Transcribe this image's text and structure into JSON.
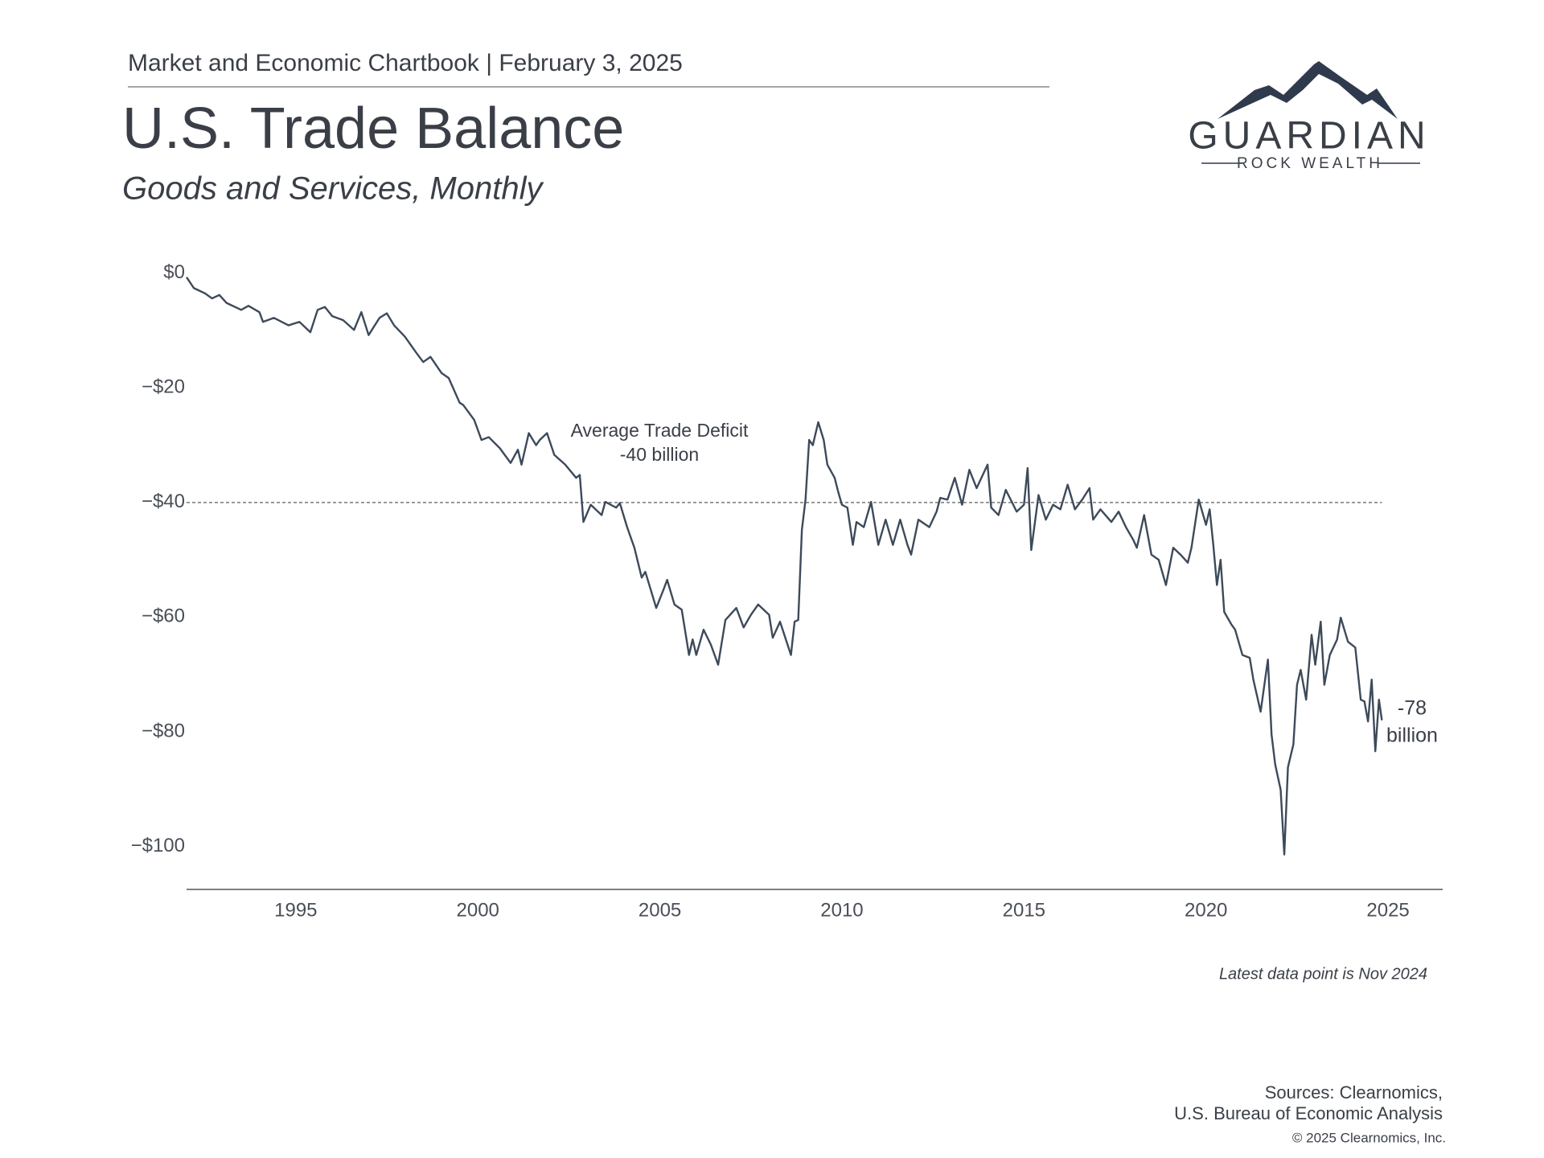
{
  "header": {
    "kicker": "Market and Economic Chartbook | February 3, 2025",
    "title": "U.S. Trade Balance",
    "subtitle": "Goods and Services, Monthly"
  },
  "logo": {
    "name": "GUARDIAN",
    "tagline": "ROCK WEALTH"
  },
  "chart_data": {
    "type": "line",
    "color": "#3d4a5a",
    "x": [
      1992.0,
      1992.2,
      1992.5,
      1992.7,
      1992.9,
      1993.1,
      1993.5,
      1993.7,
      1994.0,
      1994.1,
      1994.4,
      1994.8,
      1995.1,
      1995.4,
      1995.6,
      1995.8,
      1996.0,
      1996.3,
      1996.6,
      1996.8,
      1997.0,
      1997.3,
      1997.5,
      1997.7,
      1998.0,
      1998.3,
      1998.5,
      1998.7,
      1999.0,
      1999.2,
      1999.5,
      1999.6,
      1999.9,
      2000.1,
      2000.3,
      2000.6,
      2000.9,
      2001.1,
      2001.2,
      2001.4,
      2001.6,
      2001.7,
      2001.9,
      2002.1,
      2002.4,
      2002.7,
      2002.8,
      2002.9,
      2003.1,
      2003.4,
      2003.5,
      2003.8,
      2003.9,
      2004.1,
      2004.3,
      2004.5,
      2004.6,
      2004.9,
      2005.1,
      2005.2,
      2005.4,
      2005.6,
      2005.8,
      2005.9,
      2006.0,
      2006.2,
      2006.4,
      2006.6,
      2006.8,
      2007.1,
      2007.3,
      2007.5,
      2007.7,
      2008.0,
      2008.1,
      2008.3,
      2008.6,
      2008.7,
      2008.8,
      2008.9,
      2009.0,
      2009.1,
      2009.2,
      2009.35,
      2009.5,
      2009.6,
      2009.8,
      2009.9,
      2010.0,
      2010.15,
      2010.3,
      2010.4,
      2010.6,
      2010.8,
      2011.0,
      2011.2,
      2011.4,
      2011.6,
      2011.8,
      2011.9,
      2012.1,
      2012.4,
      2012.6,
      2012.7,
      2012.9,
      2013.1,
      2013.3,
      2013.5,
      2013.7,
      2014.0,
      2014.1,
      2014.3,
      2014.5,
      2014.8,
      2015.0,
      2015.1,
      2015.2,
      2015.4,
      2015.6,
      2015.8,
      2016.0,
      2016.2,
      2016.4,
      2016.6,
      2016.8,
      2016.9,
      2017.1,
      2017.4,
      2017.6,
      2017.8,
      2018.0,
      2018.1,
      2018.3,
      2018.5,
      2018.7,
      2018.9,
      2019.1,
      2019.3,
      2019.5,
      2019.6,
      2019.8,
      2020.0,
      2020.1,
      2020.2,
      2020.3,
      2020.4,
      2020.5,
      2020.7,
      2020.8,
      2021.0,
      2021.2,
      2021.3,
      2021.5,
      2021.7,
      2021.8,
      2021.9,
      2022.05,
      2022.15,
      2022.25,
      2022.4,
      2022.5,
      2022.6,
      2022.75,
      2022.9,
      2023.0,
      2023.15,
      2023.25,
      2023.4,
      2023.6,
      2023.7,
      2023.9,
      2024.1,
      2024.25,
      2024.35,
      2024.45,
      2024.55,
      2024.65,
      2024.75,
      2024.83
    ],
    "values": [
      -0.7,
      -2.6,
      -3.5,
      -4.4,
      -3.8,
      -5.2,
      -6.4,
      -5.7,
      -6.8,
      -8.5,
      -7.8,
      -9.1,
      -8.5,
      -10.3,
      -6.4,
      -5.9,
      -7.5,
      -8.2,
      -9.9,
      -6.8,
      -10.8,
      -7.8,
      -7.0,
      -9.1,
      -11.1,
      -13.8,
      -15.5,
      -14.6,
      -17.4,
      -18.3,
      -22.6,
      -23.0,
      -25.6,
      -29.1,
      -28.6,
      -30.5,
      -33.1,
      -30.8,
      -33.4,
      -27.9,
      -30.0,
      -29.1,
      -27.9,
      -31.7,
      -33.4,
      -35.7,
      -35.2,
      -43.4,
      -40.4,
      -42.2,
      -39.9,
      -40.9,
      -40.1,
      -44.3,
      -47.9,
      -53.1,
      -52.1,
      -58.4,
      -55.2,
      -53.5,
      -57.8,
      -58.7,
      -66.6,
      -63.9,
      -66.6,
      -62.2,
      -64.8,
      -68.3,
      -60.5,
      -58.4,
      -61.8,
      -59.6,
      -57.8,
      -59.6,
      -63.6,
      -60.8,
      -66.6,
      -60.8,
      -60.5,
      -44.8,
      -39.5,
      -29.1,
      -30.0,
      -26.0,
      -29.1,
      -33.4,
      -35.7,
      -38.2,
      -40.4,
      -40.9,
      -47.4,
      -43.4,
      -44.3,
      -39.9,
      -47.4,
      -43.0,
      -47.4,
      -43.0,
      -47.4,
      -49.1,
      -43.0,
      -44.3,
      -41.6,
      -39.2,
      -39.5,
      -35.7,
      -40.4,
      -34.3,
      -37.5,
      -33.4,
      -40.9,
      -42.2,
      -37.8,
      -41.6,
      -40.4,
      -34.0,
      -48.3,
      -38.7,
      -43.0,
      -40.4,
      -41.2,
      -36.9,
      -41.2,
      -39.5,
      -37.5,
      -43.0,
      -41.2,
      -43.4,
      -41.6,
      -44.3,
      -46.5,
      -47.9,
      -42.2,
      -49.1,
      -50.0,
      -54.4,
      -47.9,
      -49.1,
      -50.5,
      -47.9,
      -39.5,
      -43.9,
      -41.2,
      -47.4,
      -54.4,
      -50.0,
      -59.1,
      -61.3,
      -62.2,
      -66.6,
      -67.1,
      -70.9,
      -76.5,
      -67.4,
      -80.5,
      -85.7,
      -90.1,
      -101.4,
      -86.2,
      -82.2,
      -71.8,
      -69.2,
      -74.4,
      -63.1,
      -68.3,
      -60.8,
      -71.8,
      -66.6,
      -63.9,
      -60.1,
      -64.3,
      -65.3,
      -74.4,
      -74.7,
      -78.2,
      -70.9,
      -83.4,
      -74.4,
      -78.0
    ],
    "xlim": [
      1992.0,
      2026.5
    ],
    "xticks": [
      1995,
      2000,
      2005,
      2010,
      2015,
      2020,
      2025
    ],
    "ylim": [
      -107.5,
      1.5
    ],
    "yticks": [
      {
        "value": 0,
        "label": "$0"
      },
      {
        "value": -20,
        "label": "−$20"
      },
      {
        "value": -40,
        "label": "−$40"
      },
      {
        "value": -60,
        "label": "−$60"
      },
      {
        "value": -80,
        "label": "−$80"
      },
      {
        "value": -100,
        "label": "−$100"
      }
    ],
    "grid": false,
    "reference_line": {
      "value": -40,
      "labels": [
        "Average Trade Deficit",
        "-40 billion"
      ]
    },
    "end_label": [
      "-78",
      "billion"
    ],
    "note": "Latest data point is Nov 2024"
  },
  "footer": {
    "sources": [
      "Sources: Clearnomics,",
      "U.S. Bureau of Economic Analysis"
    ],
    "copyright": "© 2025 Clearnomics, Inc."
  }
}
